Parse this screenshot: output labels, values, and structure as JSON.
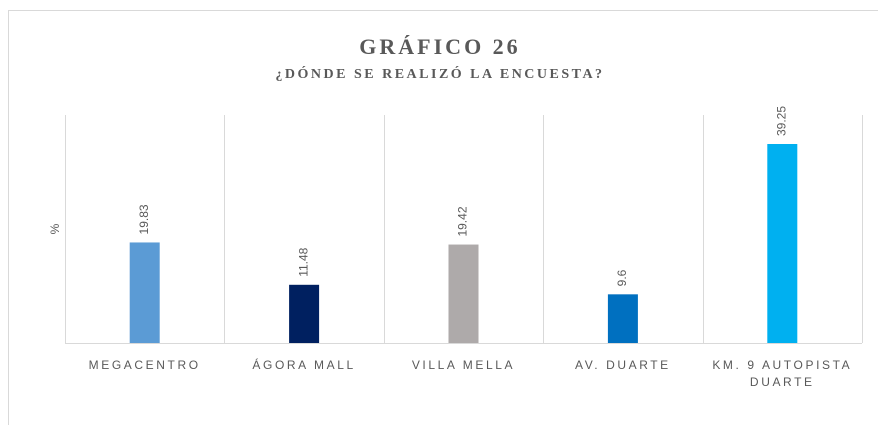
{
  "chart_data": {
    "type": "bar",
    "title": "GRÁFICO 26",
    "subtitle": "¿DÓNDE SE REALIZÓ LA ENCUESTA?",
    "y_label": "%",
    "categories": [
      "MEGACENTRO",
      "ÁGORA MALL",
      "VILLA MELLA",
      "AV. DUARTE",
      "KM. 9 AUTOPISTA DUARTE"
    ],
    "values": [
      19.83,
      11.48,
      19.42,
      9.6,
      39.25
    ],
    "colors": [
      "#5b9bd5",
      "#002060",
      "#aeaaaa",
      "#0070c0",
      "#00b0f0"
    ]
  }
}
